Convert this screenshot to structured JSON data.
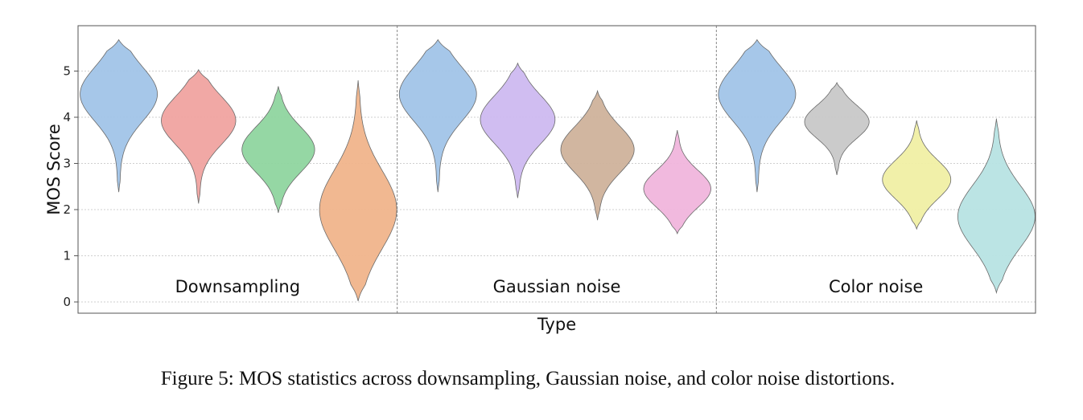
{
  "chart_data": {
    "type": "violin",
    "ylabel": "MOS Score",
    "xlabel": "Type",
    "ylim": [
      -0.25,
      5.95
    ],
    "yticks": [
      0,
      1,
      2,
      3,
      4,
      5
    ],
    "grid": "horizontal dotted",
    "groups": [
      {
        "label": "Downsampling",
        "violins": [
          {
            "color": "#a1c4e8",
            "min": 2.38,
            "max": 5.68,
            "peak": 4.5
          },
          {
            "color": "#f0a3a0",
            "min": 2.13,
            "max": 5.03,
            "peak": 3.93
          },
          {
            "color": "#8fd59f",
            "min": 1.93,
            "max": 4.67,
            "peak": 3.3
          },
          {
            "color": "#f0b48b",
            "min": 0.02,
            "max": 4.8,
            "peak": 2.0
          }
        ]
      },
      {
        "label": "Gaussian noise",
        "violins": [
          {
            "color": "#a1c4e8",
            "min": 2.38,
            "max": 5.68,
            "peak": 4.5
          },
          {
            "color": "#cdb9f0",
            "min": 2.25,
            "max": 5.17,
            "peak": 3.95
          },
          {
            "color": "#cfb29b",
            "min": 1.77,
            "max": 4.57,
            "peak": 3.3
          },
          {
            "color": "#f0b5dc",
            "min": 1.48,
            "max": 3.72,
            "peak": 2.45
          }
        ]
      },
      {
        "label": "Color noise",
        "violins": [
          {
            "color": "#a1c4e8",
            "min": 2.38,
            "max": 5.68,
            "peak": 4.5
          },
          {
            "color": "#c8c8c8",
            "min": 2.75,
            "max": 4.75,
            "peak": 3.9
          },
          {
            "color": "#f0efa4",
            "min": 1.58,
            "max": 3.93,
            "peak": 2.65
          },
          {
            "color": "#b7e3e3",
            "min": 0.2,
            "max": 3.97,
            "peak": 1.85
          }
        ]
      }
    ]
  },
  "caption": "Figure 5: MOS statistics across downsampling, Gaussian noise, and color noise distortions."
}
